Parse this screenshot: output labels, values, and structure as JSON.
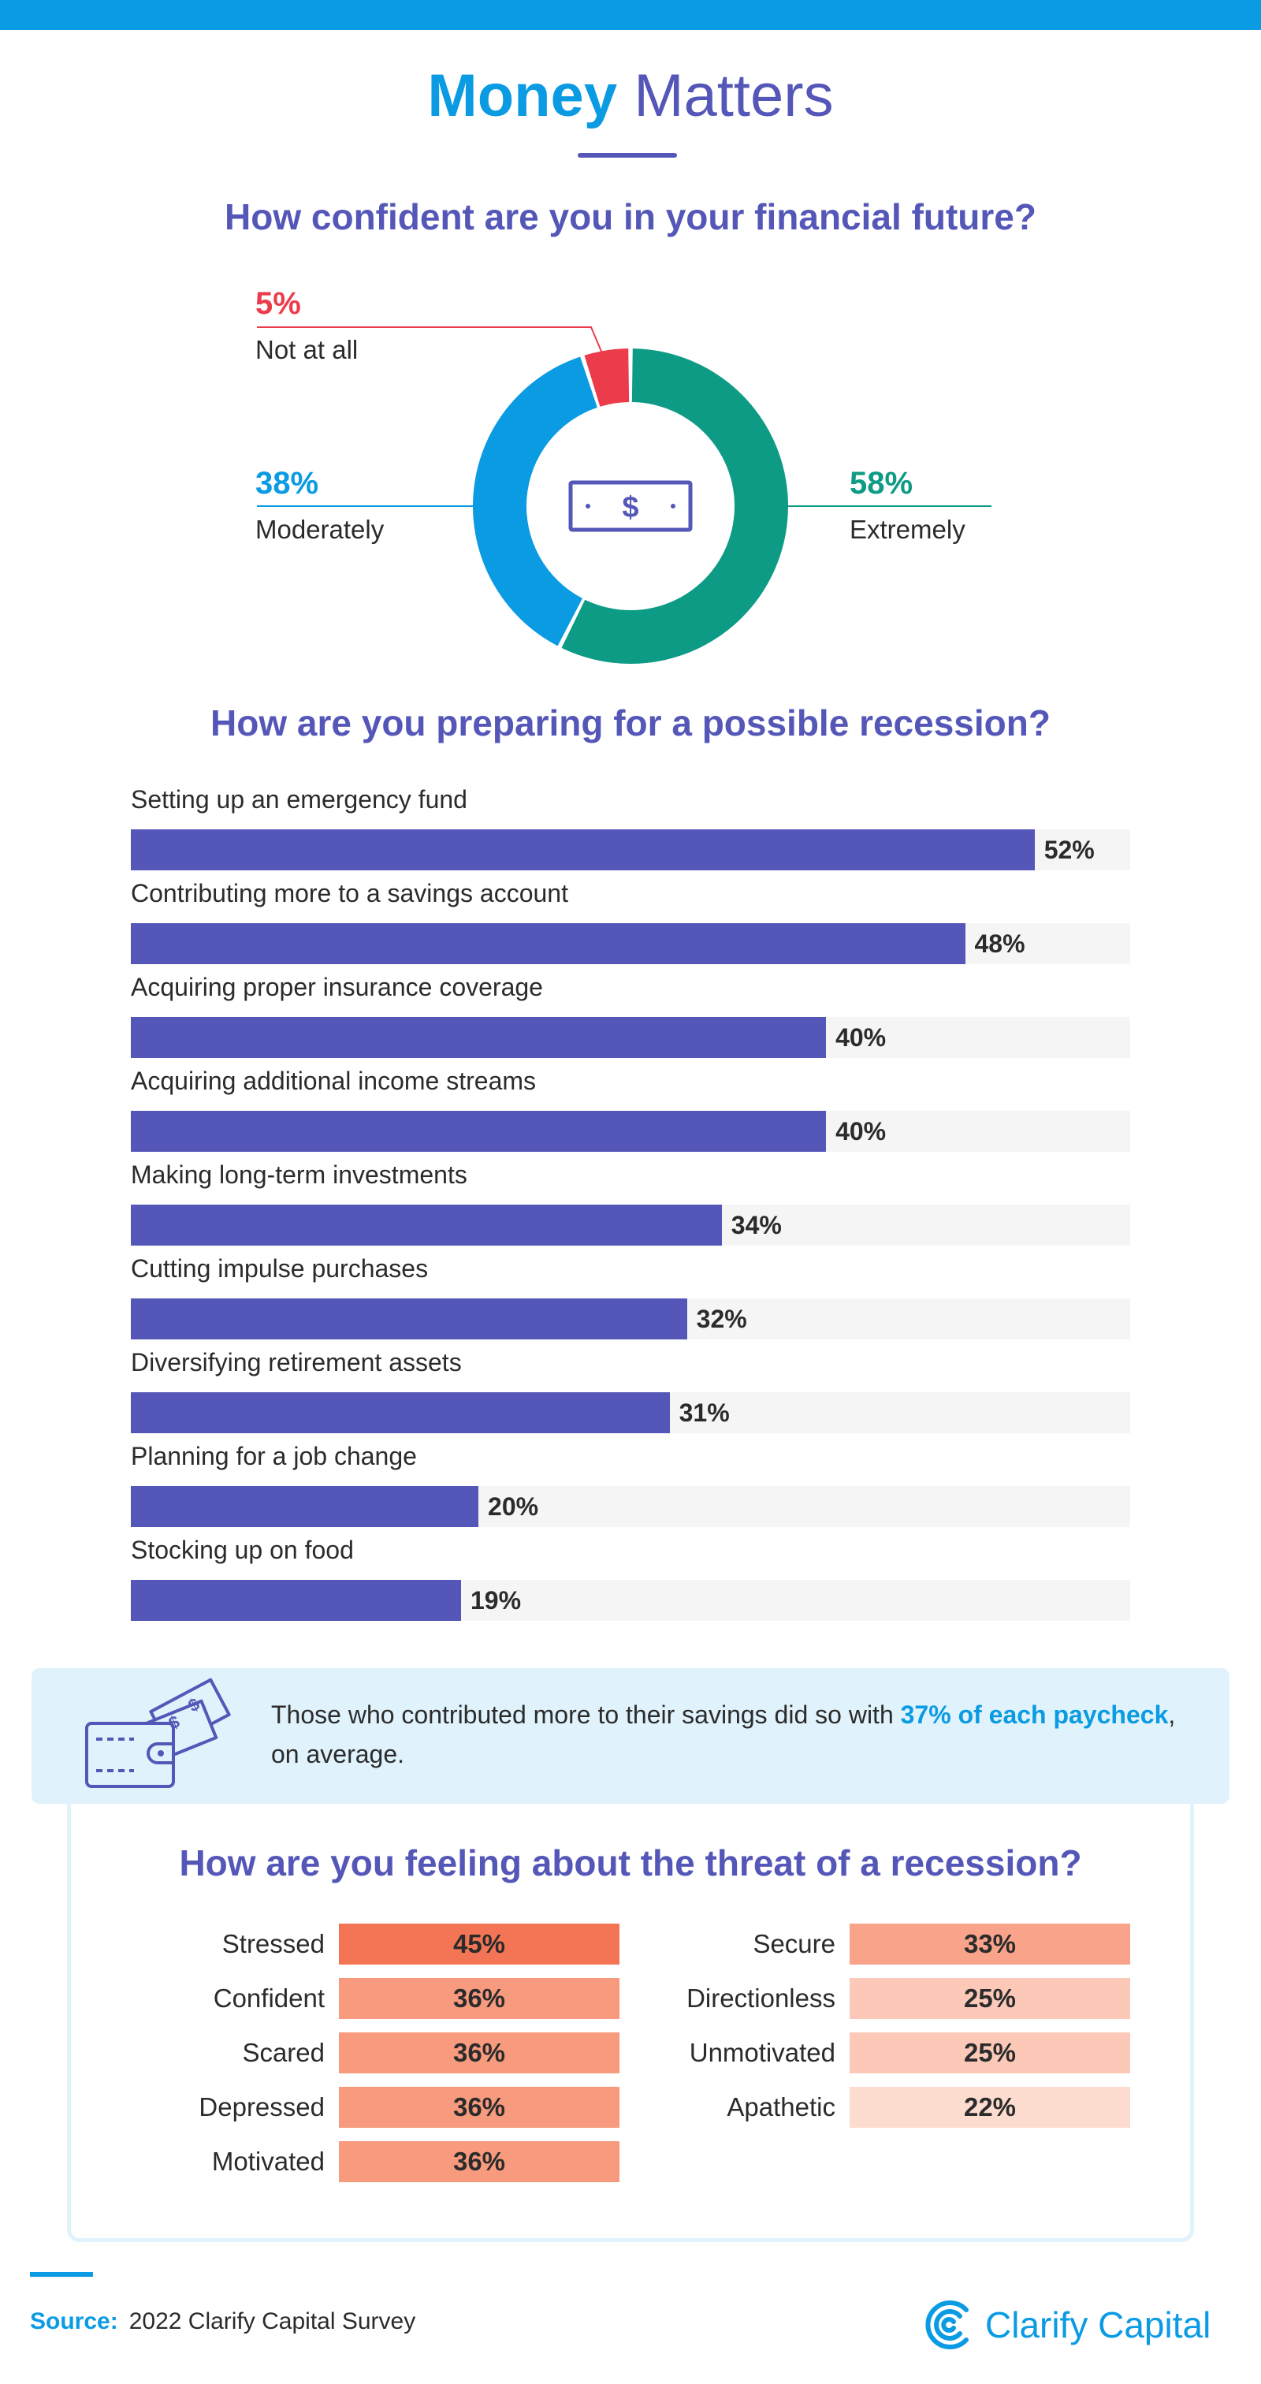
{
  "header": {
    "title_part1": "Money",
    "title_part2": "Matters"
  },
  "chart_data": [
    {
      "type": "pie",
      "title": "How confident are you in your financial future?",
      "categories": [
        "Extremely",
        "Moderately",
        "Not at all"
      ],
      "values": [
        58,
        38,
        5
      ],
      "value_labels": [
        "58%",
        "38%",
        "5%"
      ],
      "colors": [
        "#0e9b86",
        "#0a9be3",
        "#ec3c4c"
      ],
      "center_icon": "dollar-bill-icon",
      "bill_symbol": "$"
    },
    {
      "type": "bar",
      "orientation": "horizontal",
      "title": "How are you preparing for a possible recession?",
      "categories": [
        "Setting up an emergency fund",
        "Contributing more to a savings account",
        "Acquiring proper insurance coverage",
        "Acquiring additional income streams",
        "Making long-term investments",
        "Cutting impulse purchases",
        "Diversifying retirement assets",
        "Planning for a job change",
        "Stocking up on food"
      ],
      "values": [
        52,
        48,
        40,
        40,
        34,
        32,
        31,
        20,
        19
      ],
      "value_labels": [
        "52%",
        "48%",
        "40%",
        "40%",
        "34%",
        "32%",
        "31%",
        "20%",
        "19%"
      ],
      "xlim": [
        0,
        57.5
      ],
      "color": "#5557b8"
    },
    {
      "type": "table",
      "title": "How are you feeling about the threat of a recession?",
      "columns": [
        {
          "rows": [
            {
              "label": "Stressed",
              "value": 45,
              "value_label": "45%",
              "color": "#f47556"
            },
            {
              "label": "Confident",
              "value": 36,
              "value_label": "36%",
              "color": "#f79a7d"
            },
            {
              "label": "Scared",
              "value": 36,
              "value_label": "36%",
              "color": "#f79a7d"
            },
            {
              "label": "Depressed",
              "value": 36,
              "value_label": "36%",
              "color": "#f79a7d"
            },
            {
              "label": "Motivated",
              "value": 36,
              "value_label": "36%",
              "color": "#f79a7d"
            }
          ]
        },
        {
          "rows": [
            {
              "label": "Secure",
              "value": 33,
              "value_label": "33%",
              "color": "#f8a38a"
            },
            {
              "label": "Directionless",
              "value": 25,
              "value_label": "25%",
              "color": "#fcc9b9"
            },
            {
              "label": "Unmotivated",
              "value": 25,
              "value_label": "25%",
              "color": "#fcc9b9"
            },
            {
              "label": "Apathetic",
              "value": 22,
              "value_label": "22%",
              "color": "#fddcd0"
            }
          ]
        }
      ]
    }
  ],
  "callout": {
    "icon": "wallet-money-icon",
    "text_before": "Those who contributed more to their savings did so with ",
    "highlight": "37% of each paycheck",
    "text_after": ", on average."
  },
  "footer": {
    "source_label": "Source:",
    "source_text": "2022 Clarify Capital Survey",
    "brand_name": "Clarify Capital",
    "brand_icon": "clarify-capital-logo-icon"
  },
  "colors": {
    "accent_blue": "#0a9be3",
    "accent_purple": "#5557b8",
    "green": "#0e9b86",
    "red": "#ec3c4c"
  }
}
